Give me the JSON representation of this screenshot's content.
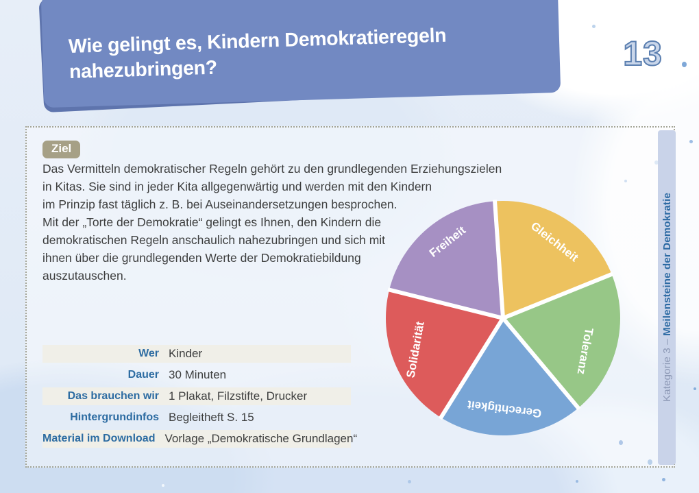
{
  "header": {
    "title": "Wie gelingt es, Kindern Demokratieregeln\nnahezubringen?",
    "number": "13"
  },
  "card": {
    "badge": "Ziel",
    "paragraph": "Das Vermitteln demokratischer Regeln gehört zu den grundlegenden Erziehungszielen\nin Kitas. Sie sind in jeder Kita allgegenwärtig und werden mit den Kindern\nim Prinzip fast täglich z. B. bei Auseinandersetzungen besprochen.\nMit der „Torte der Demokratie“ gelingt es Ihnen, den Kindern die\ndemokratischen Regeln anschaulich nahezubringen und sich mit\nihnen über die grundlegenden Werte der Demokratiebildung\nauszutauschen.",
    "info_table": {
      "rows": [
        {
          "label": "Wer",
          "value": "Kinder"
        },
        {
          "label": "Dauer",
          "value": "30 Minuten"
        },
        {
          "label": "Das brauchen wir",
          "value": "1 Plakat, Filzstifte, Drucker"
        },
        {
          "label": "Hintergrundinfos",
          "value": "Begleitheft S. 15"
        },
        {
          "label": "Material im Download",
          "value": "Vorlage „Demokratische Grundlagen“"
        }
      ]
    },
    "category": {
      "prefix": "Kategorie 3 – ",
      "title": "Meilensteine der Demokratie"
    }
  },
  "chart_data": {
    "type": "pie",
    "categories": [
      "Gleichheit",
      "Toleranz",
      "Gerechtigkeit",
      "Solidarität",
      "Freiheit"
    ],
    "values": [
      20,
      20,
      20,
      20,
      20
    ],
    "unit": "percent (five equal slices)",
    "colors": [
      "#edc25f",
      "#97c787",
      "#78a5d6",
      "#dd5b5b",
      "#a690c3"
    ],
    "start_angle_deg": -4,
    "slice_gap_color": "#ffffff",
    "label_color": "#ffffff",
    "legend_position": "labels-inside-slices",
    "label_layout": [
      {
        "angle": 34,
        "radius_factor": 0.78,
        "rotation": 38
      },
      {
        "angle": 112,
        "radius_factor": 0.75,
        "rotation": 100
      },
      {
        "angle": 179,
        "radius_factor": 0.77,
        "rotation": 187
      },
      {
        "angle": 250,
        "radius_factor": 0.79,
        "rotation": -80
      },
      {
        "angle": 324,
        "radius_factor": 0.8,
        "rotation": -38
      }
    ]
  },
  "colors": {
    "banner": "#7289c2",
    "banner_shadow": "#5e74ad",
    "number_fill": "#c9d6ea",
    "number_outline": "#5b7fb0",
    "badge_bg": "#a6a086",
    "label_blue": "#2d6ca2",
    "row_shade": "#f0efe8",
    "strip_bg": "#c9d3e9",
    "category_bold": "#2c6aa3",
    "body_text": "#3d3e3e"
  }
}
